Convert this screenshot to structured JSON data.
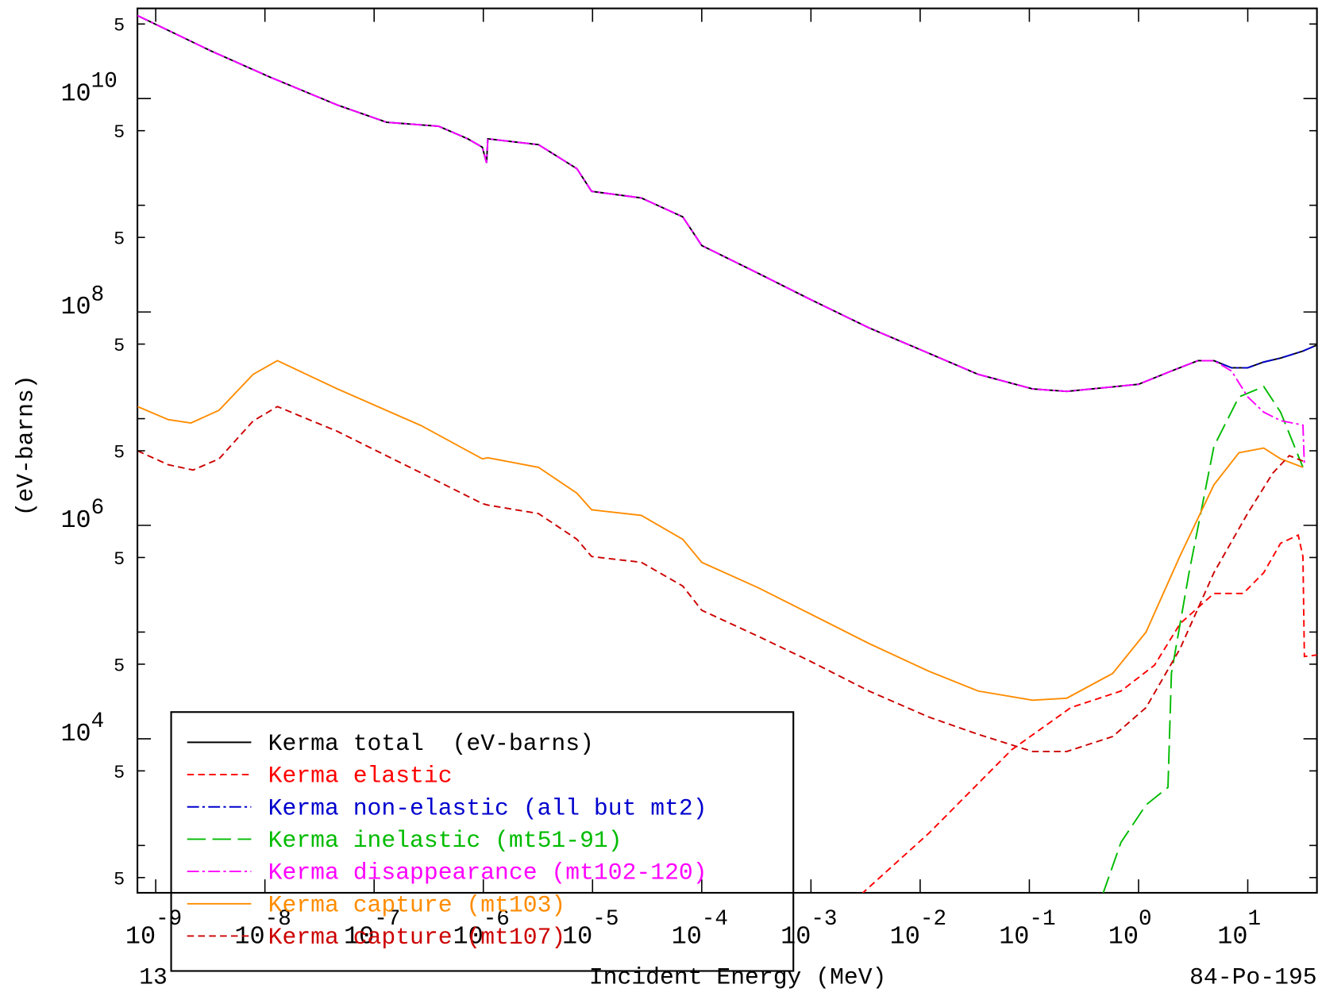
{
  "chart_data": {
    "type": "line",
    "x_label": "Incident Energy (MeV)",
    "y_label": "(eV-barns)",
    "corner_left": "13",
    "corner_right": "84-Po-195",
    "xscale": "log",
    "yscale": "log",
    "legend": "lower left",
    "xlim": [
      6.8e-10,
      43
    ],
    "ylim": [
      360,
      70000000000.0
    ],
    "xticks": [
      {
        "value": 1e-09,
        "label": "10",
        "exponent": "-9"
      },
      {
        "value": 1e-08,
        "label": "10",
        "exponent": "-8"
      },
      {
        "value": 1e-07,
        "label": "10",
        "exponent": "-7"
      },
      {
        "value": 1e-06,
        "label": "10",
        "exponent": "-6"
      },
      {
        "value": 1e-05,
        "label": "10",
        "exponent": "-5"
      },
      {
        "value": 0.0001,
        "label": "10",
        "exponent": "-4"
      },
      {
        "value": 0.001,
        "label": "10",
        "exponent": "-3"
      },
      {
        "value": 0.01,
        "label": "10",
        "exponent": "-2"
      },
      {
        "value": 0.1,
        "label": "10",
        "exponent": "-1"
      },
      {
        "value": 1,
        "label": "10",
        "exponent": "0"
      },
      {
        "value": 10,
        "label": "10",
        "exponent": "1"
      }
    ],
    "yticks": [
      {
        "value": 50000000000.0,
        "label": "5"
      },
      {
        "value": 10000000000.0,
        "label": "10",
        "exponent": "10"
      },
      {
        "value": 5000000000.0,
        "label": "5"
      },
      {
        "value": 1000000000.0,
        "label": null
      },
      {
        "value": 500000000.0,
        "label": "5"
      },
      {
        "value": 100000000.0,
        "label": "10",
        "exponent": "8"
      },
      {
        "value": 50000000.0,
        "label": "5"
      },
      {
        "value": 10000000.0,
        "label": null
      },
      {
        "value": 5000000.0,
        "label": "5"
      },
      {
        "value": 1000000.0,
        "label": "10",
        "exponent": "6"
      },
      {
        "value": 500000.0,
        "label": "5"
      },
      {
        "value": 100000.0,
        "label": null
      },
      {
        "value": 50000.0,
        "label": "5"
      },
      {
        "value": 10000.0,
        "label": "10",
        "exponent": "4"
      },
      {
        "value": 5000.0,
        "label": "5"
      },
      {
        "value": 1000.0,
        "label": null
      },
      {
        "value": 500.0,
        "label": "5"
      }
    ],
    "series": [
      {
        "name": "Kerma total  (eV-barns)",
        "color": "#000000",
        "dash": "none",
        "x": [
          6.8e-10,
          3.2e-09,
          1.1e-08,
          4.6e-08,
          1.3e-07,
          3.9e-07,
          7.2e-07,
          9.8e-07,
          1.07e-06,
          1.1e-06,
          3.2e-06,
          7.2e-06,
          9.8e-06,
          2.8e-05,
          6.7e-05,
          0.0001,
          0.00033,
          0.00096,
          0.0034,
          0.012,
          0.034,
          0.107,
          0.22,
          1.0,
          2.0,
          3.5,
          4.9,
          7.1,
          10,
          14,
          20,
          32,
          43
        ],
        "values": [
          60000000000.0,
          28000000000.0,
          16000000000.0,
          8700000000.0,
          6000000000.0,
          5500000000.0,
          4200000000.0,
          3500000000.0,
          2500000000.0,
          4200000000.0,
          3700000000.0,
          2200000000.0,
          1350000000.0,
          1170000000.0,
          780000000.0,
          420000000.0,
          230000000.0,
          133000000.0,
          71000000.0,
          41000000.0,
          26000000.0,
          19000000.0,
          18000000.0,
          21000000.0,
          28000000.0,
          35000000.0,
          35000000.0,
          30000000.0,
          30000000.0,
          34000000.0,
          37000000.0,
          43000000.0,
          49000000.0
        ]
      },
      {
        "name": "Kerma elastic",
        "color": "#ff0000",
        "dash": "8,5",
        "x": [
          0.0029,
          0.012,
          0.069,
          0.24,
          0.69,
          1.4,
          2.4,
          4.9,
          9.1,
          14,
          20,
          29,
          32,
          33,
          43
        ],
        "values": [
          350,
          1300.0,
          7900.0,
          19600.0,
          28000.0,
          49000.0,
          120000.0,
          230000.0,
          230000.0,
          360000.0,
          680000.0,
          810000.0,
          510000.0,
          59000.0,
          61000.0
        ]
      },
      {
        "name": "Kerma non-elastic (all but mt2)",
        "color": "#0000cd",
        "dash": "14,4,3,4",
        "x": [
          6.8e-10,
          3.2e-09,
          1.1e-08,
          4.6e-08,
          1.3e-07,
          3.9e-07,
          7.2e-07,
          9.8e-07,
          1.07e-06,
          1.1e-06,
          3.2e-06,
          7.2e-06,
          9.8e-06,
          2.8e-05,
          6.7e-05,
          0.0001,
          0.00033,
          0.00096,
          0.0034,
          0.012,
          0.034,
          0.107,
          0.22,
          1.0,
          2.0,
          3.5,
          4.9,
          7.1,
          10,
          14,
          20,
          32,
          43
        ],
        "values": [
          60000000000.0,
          28000000000.0,
          16000000000.0,
          8700000000.0,
          6000000000.0,
          5500000000.0,
          4200000000.0,
          3500000000.0,
          2500000000.0,
          4200000000.0,
          3700000000.0,
          2200000000.0,
          1350000000.0,
          1170000000.0,
          780000000.0,
          420000000.0,
          230000000.0,
          133000000.0,
          71000000.0,
          41000000.0,
          26000000.0,
          19000000.0,
          18000000.0,
          21000000.0,
          28000000.0,
          35000000.0,
          35000000.0,
          30000000.0,
          30000000.0,
          34000000.0,
          37000000.0,
          43000000.0,
          49000000.0
        ]
      },
      {
        "name": "Kerma inelastic (mt51-91)",
        "color": "#00bb00",
        "dash": "22,8",
        "x": [
          0.47,
          0.69,
          1.17,
          1.86,
          2.0,
          2.9,
          4.9,
          8.3,
          14,
          20,
          32
        ],
        "values": [
          350,
          1070.0,
          2400.0,
          3500.0,
          41000.0,
          360000.0,
          5500000.0,
          16000000.0,
          20000000.0,
          11500000.0,
          3500000.0
        ]
      },
      {
        "name": "Kerma disappearance (mt102-120)",
        "color": "#ff00ff",
        "dash": "14,4,3,4",
        "x": [
          6.8e-10,
          3.2e-09,
          1.1e-08,
          4.6e-08,
          1.3e-07,
          3.9e-07,
          7.2e-07,
          9.8e-07,
          1.07e-06,
          1.1e-06,
          3.2e-06,
          7.2e-06,
          9.8e-06,
          2.8e-05,
          6.7e-05,
          0.0001,
          0.00033,
          0.00096,
          0.0034,
          0.012,
          0.034,
          0.107,
          0.22,
          1.0,
          2.0,
          3.5,
          4.9,
          7.1,
          10,
          14,
          20,
          32,
          33
        ],
        "values": [
          60000000000.0,
          28000000000.0,
          16000000000.0,
          8700000000.0,
          6000000000.0,
          5500000000.0,
          4200000000.0,
          3500000000.0,
          2500000000.0,
          4200000000.0,
          3700000000.0,
          2200000000.0,
          1350000000.0,
          1170000000.0,
          780000000.0,
          420000000.0,
          230000000.0,
          133000000.0,
          71000000.0,
          41000000.0,
          26000000.0,
          19000000.0,
          18000000.0,
          21000000.0,
          28000000.0,
          35000000.0,
          35000000.0,
          28000000.0,
          16000000.0,
          11500000.0,
          9600000.0,
          8700000.0,
          3700000.0
        ]
      },
      {
        "name": "Kerma capture (mt103)",
        "color": "#ff8c00",
        "dash": "none",
        "x": [
          6.8e-10,
          1.3e-09,
          2.1e-09,
          3.8e-09,
          7.8e-09,
          1.3e-08,
          4.6e-08,
          2.7e-07,
          9.8e-07,
          1.1e-06,
          3.2e-06,
          7.2e-06,
          9.8e-06,
          2.8e-05,
          6.7e-05,
          0.0001,
          0.00033,
          0.00096,
          0.0034,
          0.012,
          0.034,
          0.107,
          0.22,
          0.58,
          1.17,
          2.4,
          4.9,
          8.3,
          14,
          20,
          32
        ],
        "values": [
          13000000.0,
          9800000.0,
          9100000.0,
          12000000.0,
          26000000.0,
          35000000.0,
          19000000.0,
          8600000.0,
          4200000.0,
          4300000.0,
          3500000.0,
          2000000.0,
          1400000.0,
          1240000.0,
          740000.0,
          450000.0,
          260000.0,
          150000.0,
          78000.0,
          43000.0,
          28000.0,
          23000.0,
          24000.0,
          41000.0,
          100000.0,
          520000.0,
          2400000.0,
          4800000.0,
          5300000.0,
          4200000.0,
          3500000.0
        ]
      },
      {
        "name": "Kerma capture (mt107)",
        "color": "#cc0000",
        "dash": "8,5",
        "x": [
          6.8e-10,
          1.3e-09,
          2.2e-09,
          3.8e-09,
          7.8e-09,
          1.3e-08,
          4.6e-08,
          2.7e-07,
          9.8e-07,
          1.1e-06,
          3.2e-06,
          7.2e-06,
          9.8e-06,
          2.8e-05,
          6.7e-05,
          0.0001,
          0.00033,
          0.00096,
          0.0034,
          0.012,
          0.034,
          0.107,
          0.22,
          0.58,
          1.17,
          2.4,
          4.9,
          10,
          17,
          24,
          32
        ],
        "values": [
          5000000.0,
          3700000.0,
          3300000.0,
          4200000.0,
          9500000.0,
          13000000.0,
          7600000.0,
          3100000.0,
          1600000.0,
          1550000.0,
          1290000.0,
          740000.0,
          510000.0,
          450000.0,
          270000.0,
          160000.0,
          91000.0,
          54000.0,
          28000.0,
          16000.0,
          11000.0,
          7600.0,
          7600.0,
          10500.0,
          19600.0,
          70000.0,
          360000.0,
          1300000.0,
          3100000.0,
          4500000.0,
          4000000.0
        ]
      }
    ]
  }
}
